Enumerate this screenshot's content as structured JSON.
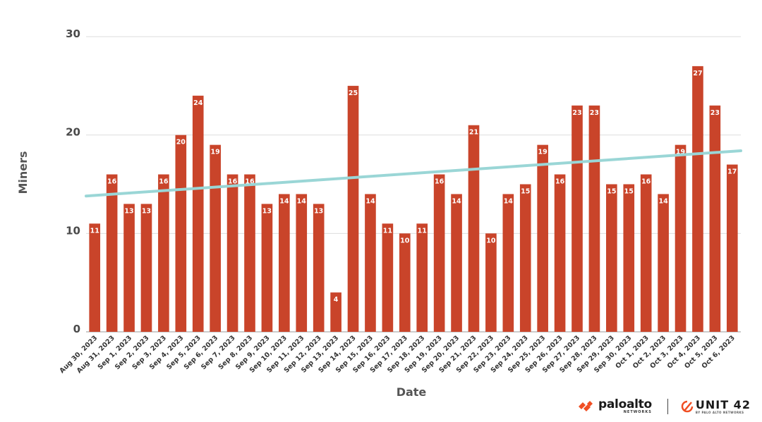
{
  "chart_data": {
    "type": "bar",
    "title": "",
    "xlabel": "Date",
    "ylabel": "Miners",
    "ylim": [
      0,
      30
    ],
    "yticks": [
      0,
      10,
      20,
      30
    ],
    "grid": true,
    "bar_color": "#c9442a",
    "trendline_color": "#9ad6d6",
    "categories": [
      "Aug 30, 2023",
      "Aug 31, 2023",
      "Sep 1, 2023",
      "Sep 2, 2023",
      "Sep 3, 2023",
      "Sep 4, 2023",
      "Sep 5, 2023",
      "Sep 6, 2023",
      "Sep 7, 2023",
      "Sep 8, 2023",
      "Sep 9, 2023",
      "Sep 10, 2023",
      "Sep 11, 2023",
      "Sep 12, 2023",
      "Sep 13, 2023",
      "Sep 14, 2023",
      "Sep 15, 2023",
      "Sep 16, 2023",
      "Sep 17, 2023",
      "Sep 18, 2023",
      "Sep 19, 2023",
      "Sep 20, 2023",
      "Sep 21, 2023",
      "Sep 22, 2023",
      "Sep 23, 2023",
      "Sep 24, 2023",
      "Sep 25, 2023",
      "Sep 26, 2023",
      "Sep 27, 2023",
      "Sep 28, 2023",
      "Sep 29, 2023",
      "Sep 30, 2023",
      "Oct 1, 2023",
      "Oct 2, 2023",
      "Oct 3, 2023",
      "Oct 4, 2023",
      "Oct 5, 2023",
      "Oct 6, 2023"
    ],
    "values": [
      11,
      16,
      13,
      13,
      16,
      20,
      24,
      19,
      16,
      16,
      13,
      14,
      14,
      13,
      4,
      25,
      14,
      11,
      10,
      11,
      16,
      14,
      21,
      10,
      14,
      15,
      19,
      16,
      23,
      23,
      15,
      15,
      16,
      14,
      19,
      27,
      23,
      17
    ],
    "trendline": {
      "start": 13.8,
      "end": 18.4
    }
  },
  "branding": {
    "paloalto": "paloalto",
    "paloalto_sub": "NETWORKS",
    "unit42": "UNIT 42",
    "unit42_sub": "BY PALO ALTO NETWORKS"
  }
}
